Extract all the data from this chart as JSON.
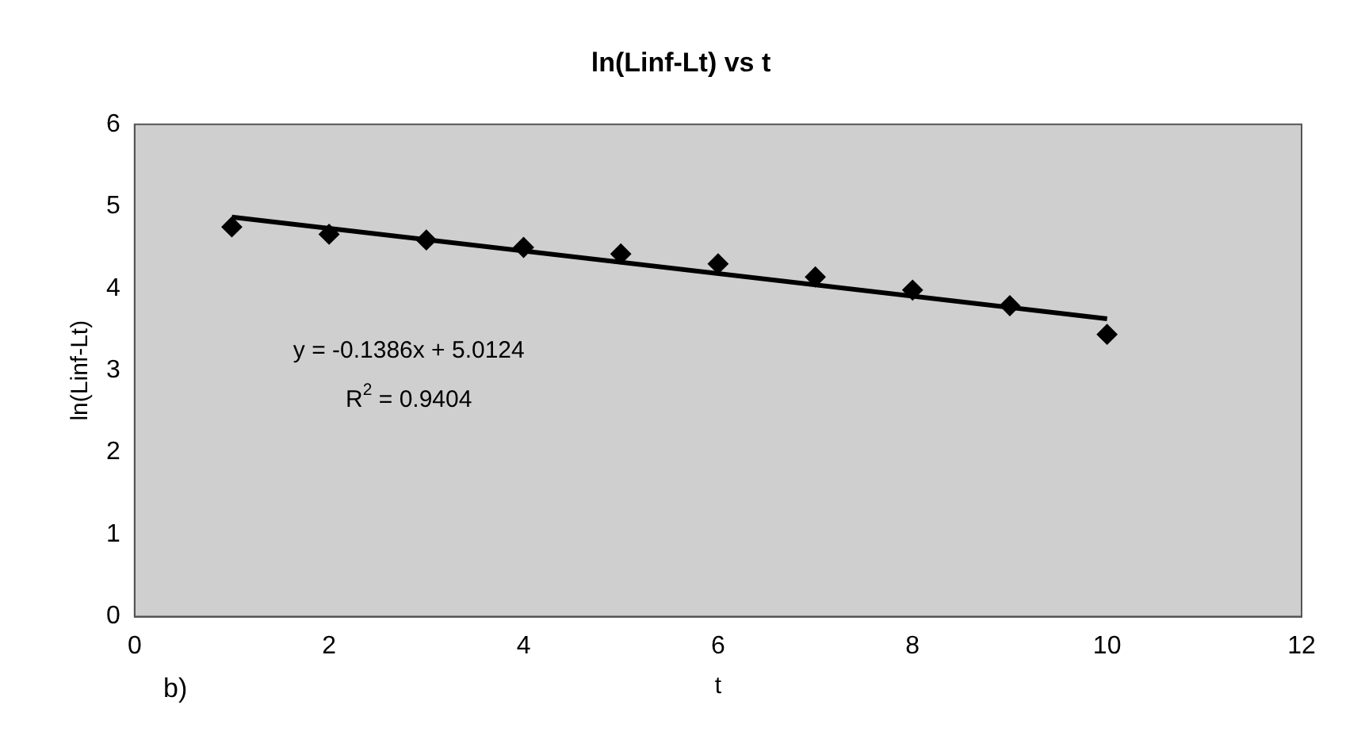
{
  "chart_data": {
    "type": "scatter",
    "title": "ln(Linf-Lt) vs t",
    "xlabel": "t",
    "ylabel": "ln(Linf-Lt)",
    "x": [
      1,
      2,
      3,
      4,
      5,
      6,
      7,
      8,
      9,
      10
    ],
    "series": [
      {
        "color": "#000000",
        "marker": "diamond",
        "values": [
          4.75,
          4.66,
          4.59,
          4.5,
          4.42,
          4.3,
          4.14,
          3.98,
          3.79,
          3.44
        ]
      },
      {
        "type": "line",
        "color": "#000000",
        "marker": "none",
        "line_style": "solid",
        "x": [
          1,
          10
        ],
        "values": [
          4.87,
          3.63
        ]
      }
    ],
    "xlim": [
      0,
      12
    ],
    "xticks": [
      0,
      2,
      4,
      6,
      8,
      10,
      12
    ],
    "ylim": [
      0,
      6
    ],
    "yticks": [
      0,
      1,
      2,
      3,
      4,
      5,
      6
    ],
    "grid": false,
    "legend": false,
    "annotations": [
      "y = -0.1386x + 5.0124",
      "R$^{2}$ = 0.9404",
      "b)"
    ]
  }
}
